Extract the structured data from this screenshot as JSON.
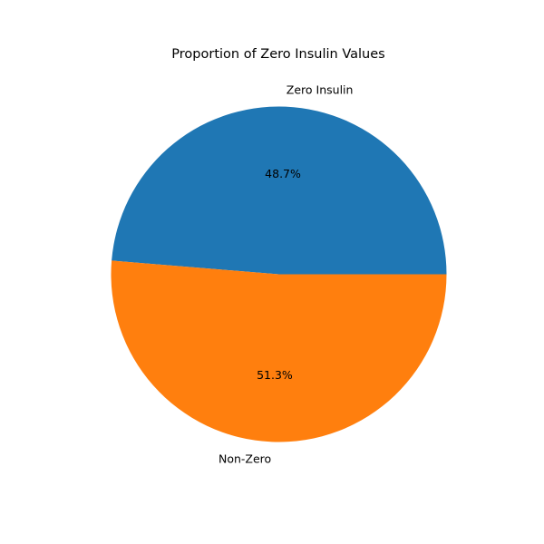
{
  "chart_data": {
    "type": "pie",
    "title": "Proportion of Zero Insulin Values",
    "categories": [
      "Zero Insulin",
      "Non-Zero"
    ],
    "values": [
      48.7,
      51.3
    ],
    "percent_labels": [
      "48.7%",
      "51.3%"
    ],
    "colors": [
      "#1f77b4",
      "#ff7f0e"
    ],
    "start_angle": "0 degrees (3 o'clock), counter-clockwise",
    "legend": "none"
  }
}
